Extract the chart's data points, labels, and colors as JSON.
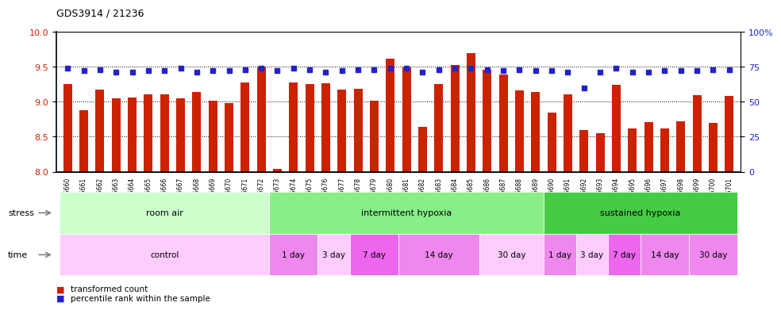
{
  "title": "GDS3914 / 21236",
  "samples": [
    "GSM215660",
    "GSM215661",
    "GSM215662",
    "GSM215663",
    "GSM215664",
    "GSM215665",
    "GSM215666",
    "GSM215667",
    "GSM215668",
    "GSM215669",
    "GSM215670",
    "GSM215671",
    "GSM215672",
    "GSM215673",
    "GSM215674",
    "GSM215675",
    "GSM215676",
    "GSM215677",
    "GSM215678",
    "GSM215679",
    "GSM215680",
    "GSM215681",
    "GSM215682",
    "GSM215683",
    "GSM215684",
    "GSM215685",
    "GSM215686",
    "GSM215687",
    "GSM215688",
    "GSM215689",
    "GSM215690",
    "GSM215691",
    "GSM215692",
    "GSM215693",
    "GSM215694",
    "GSM215695",
    "GSM215696",
    "GSM215697",
    "GSM215698",
    "GSM215699",
    "GSM215700",
    "GSM215701"
  ],
  "bar_values": [
    9.25,
    8.88,
    9.17,
    9.05,
    9.06,
    9.11,
    9.1,
    9.05,
    9.14,
    9.02,
    8.98,
    9.27,
    9.5,
    8.04,
    9.28,
    9.25,
    9.26,
    9.17,
    9.18,
    9.02,
    9.62,
    9.49,
    8.64,
    9.25,
    9.53,
    9.69,
    9.46,
    9.39,
    9.16,
    9.14,
    8.85,
    9.11,
    8.6,
    8.55,
    9.24,
    8.62,
    8.71,
    8.62,
    8.72,
    9.09,
    8.7,
    9.08
  ],
  "dot_values": [
    74,
    72,
    73,
    71,
    71,
    72,
    72,
    74,
    71,
    72,
    72,
    73,
    74,
    72,
    74,
    73,
    71,
    72,
    73,
    73,
    74,
    74,
    71,
    73,
    74,
    74,
    73,
    72,
    73,
    72,
    72,
    71,
    60,
    71,
    74,
    71,
    71,
    72,
    72,
    72,
    73,
    73
  ],
  "ylim_left": [
    8.0,
    10.0
  ],
  "ylim_right": [
    0,
    100
  ],
  "yticks_left": [
    8.0,
    8.5,
    9.0,
    9.5,
    10.0
  ],
  "yticks_right": [
    0,
    25,
    50,
    75,
    100
  ],
  "bar_color": "#cc2200",
  "dot_color": "#2222cc",
  "bar_bottom": 8.0,
  "stress_groups": [
    {
      "label": "room air",
      "start": 0,
      "end": 13,
      "color": "#ccffcc"
    },
    {
      "label": "intermittent hypoxia",
      "start": 13,
      "end": 30,
      "color": "#88ee88"
    },
    {
      "label": "sustained hypoxia",
      "start": 30,
      "end": 42,
      "color": "#44cc44"
    }
  ],
  "time_groups": [
    {
      "label": "control",
      "start": 0,
      "end": 13,
      "color": "#ffccff"
    },
    {
      "label": "1 day",
      "start": 13,
      "end": 16,
      "color": "#ee88ee"
    },
    {
      "label": "3 day",
      "start": 16,
      "end": 18,
      "color": "#ffccff"
    },
    {
      "label": "7 day",
      "start": 18,
      "end": 21,
      "color": "#ee66ee"
    },
    {
      "label": "14 day",
      "start": 21,
      "end": 26,
      "color": "#ee88ee"
    },
    {
      "label": "30 day",
      "start": 26,
      "end": 30,
      "color": "#ffccff"
    },
    {
      "label": "1 day",
      "start": 30,
      "end": 32,
      "color": "#ee88ee"
    },
    {
      "label": "3 day",
      "start": 32,
      "end": 34,
      "color": "#ffccff"
    },
    {
      "label": "7 day",
      "start": 34,
      "end": 36,
      "color": "#ee66ee"
    },
    {
      "label": "14 day",
      "start": 36,
      "end": 39,
      "color": "#ee88ee"
    },
    {
      "label": "30 day",
      "start": 39,
      "end": 42,
      "color": "#ee88ee"
    }
  ],
  "legend_items": [
    {
      "label": "transformed count",
      "color": "#cc2200"
    },
    {
      "label": "percentile rank within the sample",
      "color": "#2222cc"
    }
  ],
  "bg_color": "#ffffff",
  "tick_label_fontsize": 6,
  "axis_label_fontsize": 8
}
